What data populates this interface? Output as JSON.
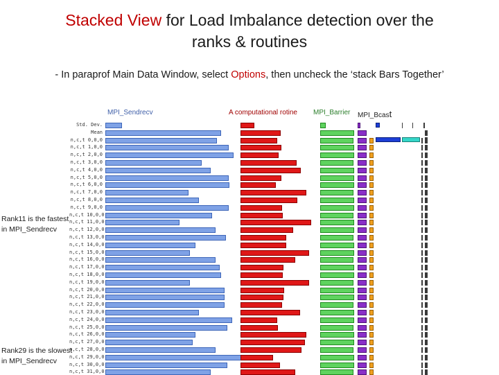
{
  "title": {
    "part1": "Stacked View",
    "part2": " for Load Imbalance detection over the",
    "line2": "ranks & routines"
  },
  "subtitle": {
    "part1": "- In paraprof Main Data Window, select ",
    "part2": "Options",
    "part3": ", then uncheck the ‘stack Bars Together’"
  },
  "columns": {
    "sendrecv": "MPI_Sendrecv",
    "computational": "A computational rotine",
    "barrier": "MPI_Barrier",
    "bcast_part1": "MPI_Bcas",
    "bcast_part2": "t"
  },
  "annotations": {
    "fastest_line1": "Rank11 is the fastest",
    "fastest_line2": "in MPI_Sendrecv",
    "slowest_line1": "Rank29 is the slowest",
    "slowest_line2": "in MPI_Sendrecv"
  },
  "colors": {
    "sendrecv": "#7fa2e6",
    "computational": "#e01818",
    "barrier": "#5fd35f",
    "bcast": "#8a2fc8"
  },
  "rows": [
    {
      "label": "Std. Dev.",
      "send": 0.13,
      "comp": 0.18,
      "barr": 0.15,
      "bcast": 0.25
    },
    {
      "label": "Mean",
      "send": 0.9,
      "comp": 0.51,
      "barr": 0.98,
      "bcast": 0.8
    },
    {
      "label": "n,c,t 0,0,0",
      "send": 0.87,
      "comp": 0.47,
      "barr": 0.96,
      "bcast": 0.8
    },
    {
      "label": "n,c,t 1,0,0",
      "send": 0.96,
      "comp": 0.52,
      "barr": 0.97,
      "bcast": 0.82
    },
    {
      "label": "n,c,t 2,0,0",
      "send": 1.0,
      "comp": 0.49,
      "barr": 0.98,
      "bcast": 0.82
    },
    {
      "label": "n,c,t 3,0,0",
      "send": 0.75,
      "comp": 0.72,
      "barr": 0.96,
      "bcast": 0.82
    },
    {
      "label": "n,c,t 4,0,0",
      "send": 0.82,
      "comp": 0.77,
      "barr": 0.98,
      "bcast": 0.82
    },
    {
      "label": "n,c,t 5,0,0",
      "send": 0.96,
      "comp": 0.52,
      "barr": 0.97,
      "bcast": 0.82
    },
    {
      "label": "n,c,t 6,0,0",
      "send": 0.97,
      "comp": 0.45,
      "barr": 0.98,
      "bcast": 0.82
    },
    {
      "label": "n,c,t 7,0,0",
      "send": 0.65,
      "comp": 0.84,
      "barr": 0.96,
      "bcast": 0.82
    },
    {
      "label": "n,c,t 8,0,0",
      "send": 0.73,
      "comp": 0.73,
      "barr": 0.97,
      "bcast": 0.82
    },
    {
      "label": "n,c,t 9,0,0",
      "send": 0.96,
      "comp": 0.53,
      "barr": 0.98,
      "bcast": 0.82
    },
    {
      "label": "n,c,t 10,0,0",
      "send": 0.83,
      "comp": 0.54,
      "barr": 0.96,
      "bcast": 0.82
    },
    {
      "label": "n,c,t 11,0,0",
      "send": 0.58,
      "comp": 0.9,
      "barr": 0.97,
      "bcast": 0.82
    },
    {
      "label": "n,c,t 12,0,0",
      "send": 0.86,
      "comp": 0.67,
      "barr": 0.98,
      "bcast": 0.82
    },
    {
      "label": "n,c,t 13,0,0",
      "send": 0.94,
      "comp": 0.58,
      "barr": 0.96,
      "bcast": 0.82
    },
    {
      "label": "n,c,t 14,0,0",
      "send": 0.7,
      "comp": 0.58,
      "barr": 0.97,
      "bcast": 0.82
    },
    {
      "label": "n,c,t 15,0,0",
      "send": 0.66,
      "comp": 0.88,
      "barr": 0.98,
      "bcast": 0.82
    },
    {
      "label": "n,c,t 16,0,0",
      "send": 0.86,
      "comp": 0.7,
      "barr": 0.96,
      "bcast": 0.82
    },
    {
      "label": "n,c,t 17,0,0",
      "send": 0.89,
      "comp": 0.55,
      "barr": 0.97,
      "bcast": 0.82
    },
    {
      "label": "n,c,t 18,0,0",
      "send": 0.9,
      "comp": 0.54,
      "barr": 0.98,
      "bcast": 0.82
    },
    {
      "label": "n,c,t 19,0,0",
      "send": 0.66,
      "comp": 0.88,
      "barr": 0.96,
      "bcast": 0.82
    },
    {
      "label": "n,c,t 20,0,0",
      "send": 0.93,
      "comp": 0.56,
      "barr": 0.97,
      "bcast": 0.82
    },
    {
      "label": "n,c,t 21,0,0",
      "send": 0.93,
      "comp": 0.55,
      "barr": 0.98,
      "bcast": 0.82
    },
    {
      "label": "n,c,t 22,0,0",
      "send": 0.93,
      "comp": 0.53,
      "barr": 0.96,
      "bcast": 0.82
    },
    {
      "label": "n,c,t 23,0,0",
      "send": 0.73,
      "comp": 0.76,
      "barr": 0.97,
      "bcast": 0.82
    },
    {
      "label": "n,c,t 24,0,0",
      "send": 0.99,
      "comp": 0.47,
      "barr": 0.98,
      "bcast": 0.82
    },
    {
      "label": "n,c,t 25,0,0",
      "send": 0.95,
      "comp": 0.48,
      "barr": 0.96,
      "bcast": 0.82
    },
    {
      "label": "n,c,t 26,0,0",
      "send": 0.7,
      "comp": 0.84,
      "barr": 0.97,
      "bcast": 0.82
    },
    {
      "label": "n,c,t 27,0,0",
      "send": 0.68,
      "comp": 0.82,
      "barr": 0.98,
      "bcast": 0.82
    },
    {
      "label": "n,c,t 28,0,0",
      "send": 0.86,
      "comp": 0.78,
      "barr": 0.96,
      "bcast": 0.82
    },
    {
      "label": "n,c,t 29,0,0",
      "send": 1.06,
      "comp": 0.42,
      "barr": 0.97,
      "bcast": 0.82
    },
    {
      "label": "n,c,t 30,0,0",
      "send": 0.95,
      "comp": 0.5,
      "barr": 0.98,
      "bcast": 0.82
    },
    {
      "label": "n,c,t 31,0,0",
      "send": 0.82,
      "comp": 0.7,
      "barr": 0.96,
      "bcast": 0.82
    }
  ]
}
